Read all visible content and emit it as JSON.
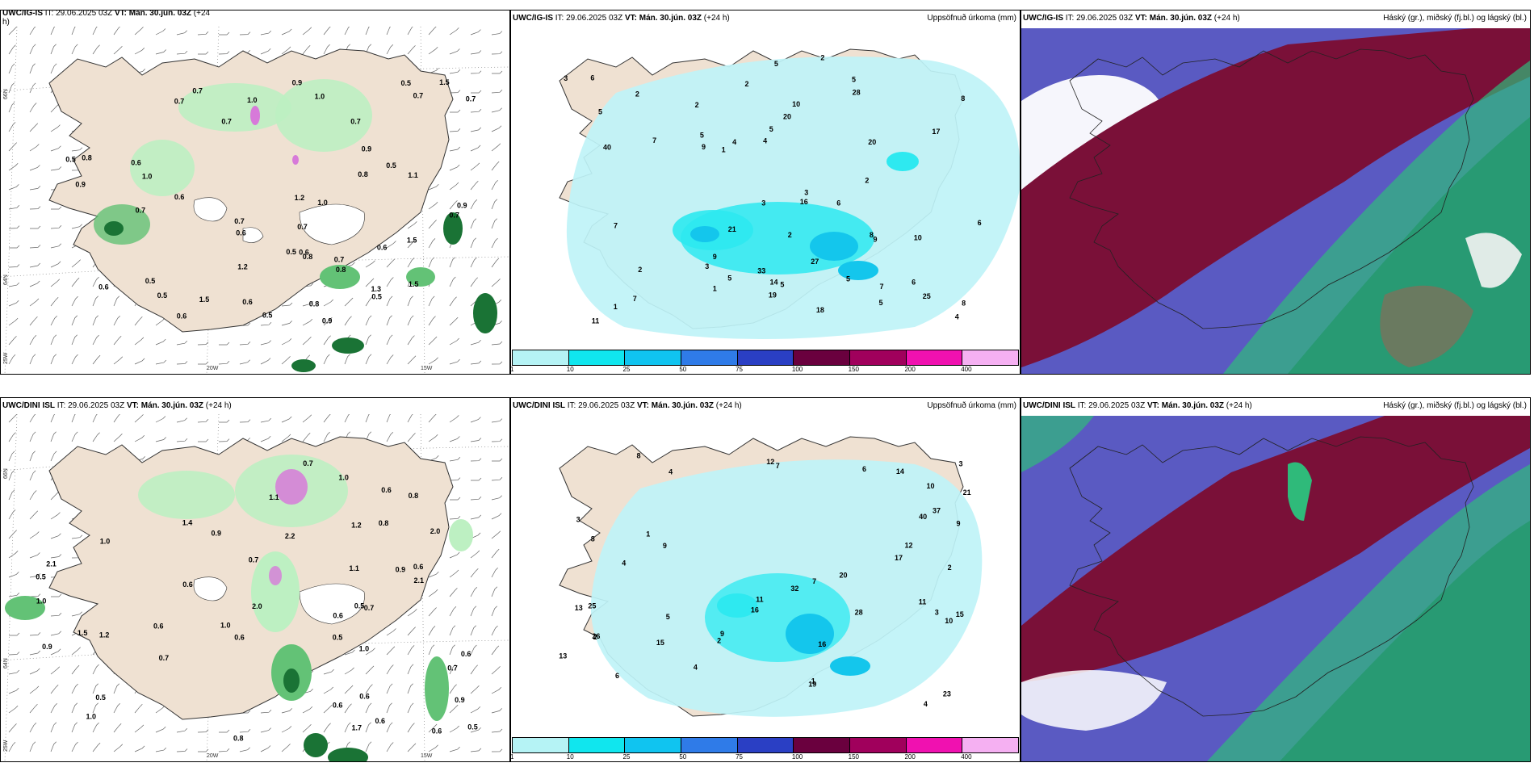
{
  "panels": {
    "top_left": {
      "model": "UWC/IG-IS",
      "it_label": "IT:",
      "it_value": "29.06.2025 03Z",
      "vt_label": "VT:",
      "vt_value": "Mán. 30.jún. 03Z",
      "lead": "(+24",
      "lead_cont": "h)",
      "grid_labels": [
        "66N",
        "64N",
        "25W",
        "20W",
        "15W"
      ],
      "values": [
        "0.9",
        "0.7",
        "0.5",
        "0.6",
        "0.5",
        "0.8",
        "0.7",
        "0.6",
        "0.6",
        "0.5",
        "0.6",
        "0.5",
        "0.7",
        "0.6",
        "0.8",
        "0.5",
        "0.9",
        "0.7",
        "0.6",
        "1.1",
        "1.3",
        "0.8",
        "0.6",
        "0.5",
        "1.0",
        "0.9",
        "0.7",
        "1.0",
        "0.5",
        "0.7",
        "0.8",
        "1.5",
        "0.7",
        "1.5",
        "0.7",
        "0.6",
        "0.9",
        "0.8",
        "0.9",
        "0.7",
        "1.0",
        "1.2",
        "0.7",
        "1.5",
        "1.0",
        "1.5",
        "0.5",
        "1.2",
        "0.7"
      ]
    },
    "top_middle": {
      "model": "UWC/IG-IS",
      "it_label": "IT:",
      "it_value": "29.06.2025 03Z",
      "vt_label": "VT:",
      "vt_value": "Mán. 30.jún. 03Z",
      "lead": "(+24 h)",
      "title_right": "Uppsöfnuð úrkoma (mm)",
      "values": [
        "1",
        "10",
        "3",
        "2",
        "2",
        "2",
        "6",
        "5",
        "7",
        "3",
        "4",
        "9",
        "5",
        "5",
        "5",
        "5",
        "8",
        "7",
        "3",
        "8",
        "3",
        "7",
        "19",
        "6",
        "9",
        "28",
        "4",
        "20",
        "17",
        "27",
        "25",
        "21",
        "10",
        "11",
        "16",
        "18",
        "14",
        "20",
        "40",
        "33",
        "7",
        "9",
        "2",
        "1",
        "2",
        "1",
        "5",
        "5",
        "6",
        "8",
        "5",
        "4",
        "6",
        "5",
        "2",
        "2"
      ]
    },
    "top_right": {
      "model": "UWC/IG-IS",
      "it_label": "IT:",
      "it_value": "29.06.2025 03Z",
      "vt_label": "VT:",
      "vt_value": "Mán. 30.jún. 03Z",
      "lead": "(+24 h)",
      "title_right": "Háský (gr.), miðský (fj.bl.) og lágský (bl.)"
    },
    "bottom_left": {
      "model": "UWC/DINI ISL",
      "it_label": "IT:",
      "it_value": "29.06.2025 03Z",
      "vt_label": "VT:",
      "vt_value": "Mán. 30.jún. 03Z",
      "lead": "(+24 h)",
      "grid_labels": [
        "66N",
        "64N",
        "25W",
        "20W",
        "15W"
      ],
      "values": [
        "0.5",
        "0.6",
        "0.9",
        "0.7",
        "0.6",
        "0.8",
        "0.6",
        "0.7",
        "0.9",
        "0.6",
        "0.5",
        "0.6",
        "0.9",
        "1.0",
        "0.7",
        "0.6",
        "0.8",
        "1.5",
        "0.6",
        "0.9",
        "0.6",
        "1.0",
        "1.1",
        "1.0",
        "2.1",
        "0.5",
        "1.0",
        "1.2",
        "0.5",
        "1.2",
        "2.0",
        "0.7",
        "2.1",
        "0.6",
        "0.6",
        "1.0",
        "2.2",
        "2.0",
        "0.7",
        "1.7",
        "1.0",
        "0.6",
        "1.1",
        "0.8",
        "0.5",
        "1.4"
      ]
    },
    "bottom_middle": {
      "model": "UWC/DINI ISL",
      "it_label": "IT:",
      "it_value": "29.06.2025 03Z",
      "vt_label": "VT:",
      "vt_value": "Mán. 30.jún. 03Z",
      "lead": "(+24 h)",
      "title_right": "Uppsöfnuð úrkoma (mm)",
      "values": [
        "1",
        "2",
        "3",
        "4",
        "3",
        "2",
        "4",
        "5",
        "6",
        "8",
        "12",
        "13",
        "7",
        "9",
        "11",
        "16",
        "15",
        "13",
        "26",
        "12",
        "10",
        "14",
        "23",
        "28",
        "21",
        "32",
        "40",
        "37",
        "25",
        "20",
        "10",
        "17",
        "11",
        "9",
        "8",
        "19",
        "16",
        "15",
        "2",
        "3",
        "1",
        "4",
        "6",
        "7",
        "9",
        "4"
      ]
    },
    "bottom_right": {
      "model": "UWC/DINI ISL",
      "it_label": "IT:",
      "it_value": "29.06.2025 03Z",
      "vt_label": "VT:",
      "vt_value": "Mán. 30.jún. 03Z",
      "lead": "(+24 h)",
      "title_right": "Háský (gr.), miðský (fj.bl.) og lágský (bl.)"
    }
  },
  "precip_legend": {
    "ticks": [
      "1",
      "10",
      "25",
      "50",
      "75",
      "100",
      "150",
      "200",
      "400"
    ],
    "colors": [
      "#b5f3f5",
      "#10e6ee",
      "#10c4f0",
      "#2f7be8",
      "#2a3fc4",
      "#6a003e",
      "#a0005c",
      "#f011b0",
      "#f5b0f2"
    ]
  },
  "colors": {
    "land": "#efe1d2",
    "precip_light": "#bff3f7",
    "precip_mid": "#2ee9f0",
    "precip_dark": "#14c6ec",
    "shower_light": "#bdf0c2",
    "shower_mid": "#63c276",
    "shower_dark": "#1a7335",
    "magenta": "#d77ad9",
    "cloud_high": "#7a1038",
    "cloud_mid": "#5a5ac2",
    "cloud_low": "#2fba7a",
    "cloud_clear": "#ffffff"
  }
}
